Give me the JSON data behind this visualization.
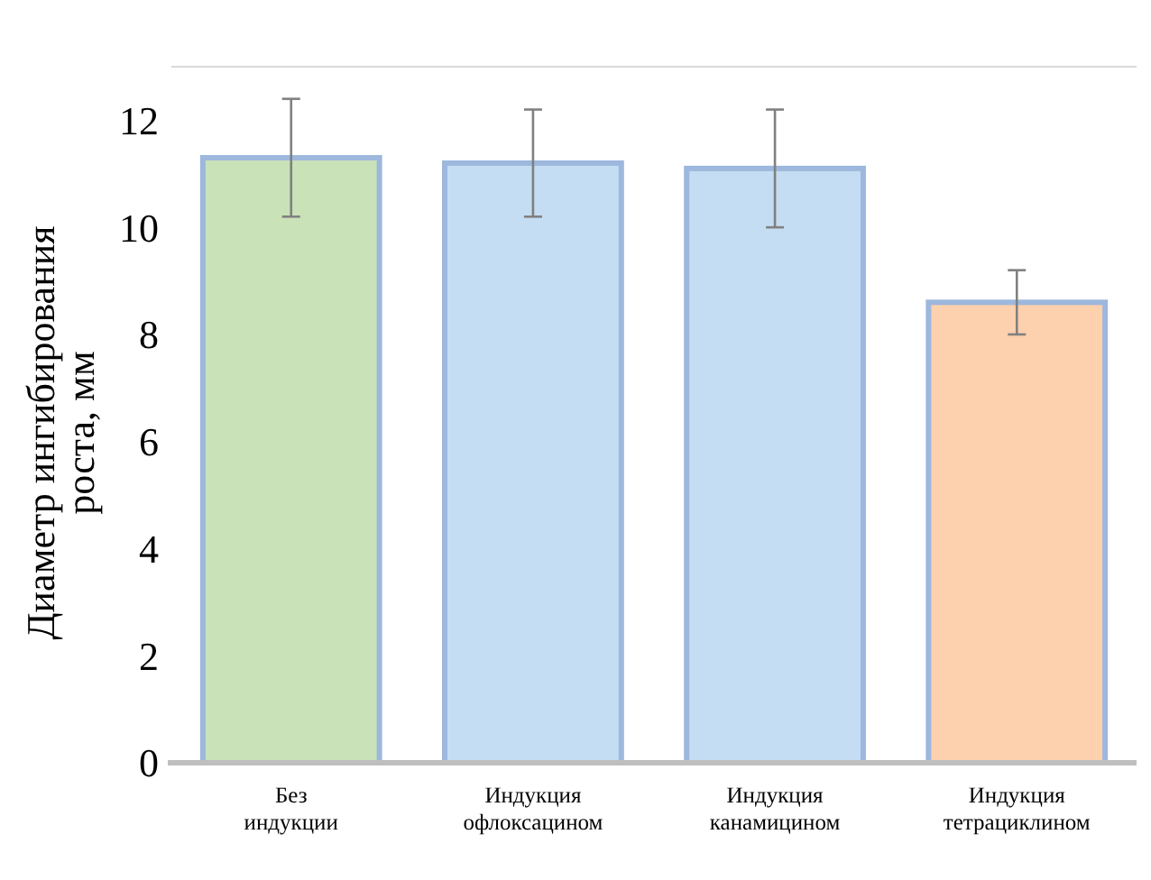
{
  "chart_data": {
    "type": "bar",
    "ylabel": "Диаметр ингибирования\nроста, мм",
    "categories": [
      "Без\nиндукции",
      "Индукция\nофлоксацином",
      "Индукция\nканамицином",
      "Индукция\nтетрациклином"
    ],
    "values": [
      11.3,
      11.2,
      11.1,
      8.6
    ],
    "errors": [
      1.1,
      1.0,
      1.1,
      0.6
    ],
    "colors": [
      "#c9e2b8",
      "#c5ddf2",
      "#c5ddf2",
      "#fdd0ae"
    ],
    "ylim": [
      0,
      13
    ],
    "yticks": [
      0,
      2,
      4,
      6,
      8,
      10,
      12
    ],
    "grid": false
  }
}
